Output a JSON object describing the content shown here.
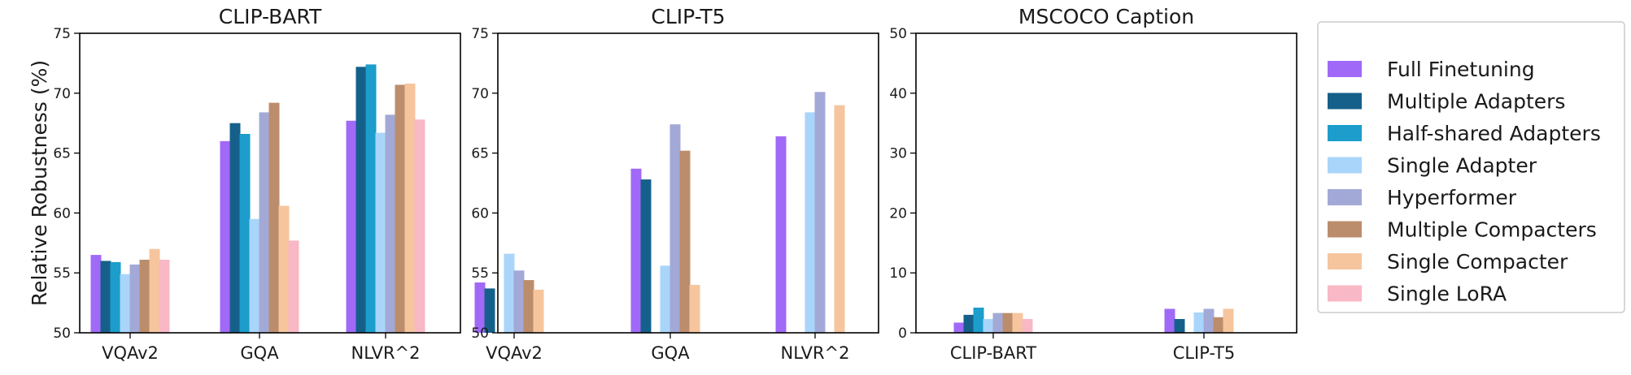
{
  "colors": {
    "Full Finetuning": "#A069F7",
    "Multiple Adapters": "#15608A",
    "Half-shared Adapters": "#1C9DCB",
    "Single Adapter": "#A9D5FA",
    "Hyperformer": "#A3A9D6",
    "Multiple Compacters": "#BC8D6C",
    "Single Compacter": "#F6C59D",
    "Single LoRA": "#F8B8C6"
  },
  "chart_data": [
    {
      "type": "bar",
      "title": "CLIP-BART",
      "ylabel": "Relative Robustness (%)",
      "ylim": [
        50,
        75
      ],
      "yticks": [
        50,
        55,
        60,
        65,
        70,
        75
      ],
      "categories": [
        "VQAv2",
        "GQA",
        "NLVR^2"
      ],
      "series": [
        {
          "name": "Full Finetuning",
          "values": [
            56.5,
            66.0,
            67.7
          ]
        },
        {
          "name": "Multiple Adapters",
          "values": [
            56.0,
            67.5,
            72.2
          ]
        },
        {
          "name": "Half-shared Adapters",
          "values": [
            55.9,
            66.6,
            72.4
          ]
        },
        {
          "name": "Single Adapter",
          "values": [
            54.9,
            59.5,
            66.7
          ]
        },
        {
          "name": "Hyperformer",
          "values": [
            55.7,
            68.4,
            68.2
          ]
        },
        {
          "name": "Multiple Compacters",
          "values": [
            56.1,
            69.2,
            70.7
          ]
        },
        {
          "name": "Single Compacter",
          "values": [
            57.0,
            60.6,
            70.8
          ]
        },
        {
          "name": "Single LoRA",
          "values": [
            56.1,
            57.7,
            67.8
          ]
        }
      ]
    },
    {
      "type": "bar",
      "title": "CLIP-T5",
      "ylabel": "",
      "ylim": [
        50,
        75
      ],
      "yticks": [
        50,
        55,
        60,
        65,
        70,
        75
      ],
      "categories": [
        "VQAv2",
        "GQA",
        "NLVR^2"
      ],
      "series": [
        {
          "name": "Full Finetuning",
          "values": [
            54.2,
            63.7,
            66.4
          ]
        },
        {
          "name": "Multiple Adapters",
          "values": [
            53.7,
            62.8,
            null
          ]
        },
        {
          "name": "Half-shared Adapters",
          "values": [
            null,
            null,
            null
          ]
        },
        {
          "name": "Single Adapter",
          "values": [
            56.6,
            55.6,
            68.4
          ]
        },
        {
          "name": "Hyperformer",
          "values": [
            55.2,
            67.4,
            70.1
          ]
        },
        {
          "name": "Multiple Compacters",
          "values": [
            54.4,
            65.2,
            null
          ]
        },
        {
          "name": "Single Compacter",
          "values": [
            53.6,
            54.0,
            69.0
          ]
        },
        {
          "name": "Single LoRA",
          "values": [
            null,
            null,
            null
          ]
        }
      ]
    },
    {
      "type": "bar",
      "title": "MSCOCO Caption",
      "ylabel": "",
      "ylim": [
        0,
        50
      ],
      "yticks": [
        0,
        10,
        20,
        30,
        40,
        50
      ],
      "categories": [
        "CLIP-BART",
        "CLIP-T5"
      ],
      "series": [
        {
          "name": "Full Finetuning",
          "values": [
            1.7,
            4.0
          ]
        },
        {
          "name": "Multiple Adapters",
          "values": [
            3.0,
            2.3
          ]
        },
        {
          "name": "Half-shared Adapters",
          "values": [
            4.2,
            null
          ]
        },
        {
          "name": "Single Adapter",
          "values": [
            2.3,
            3.4
          ]
        },
        {
          "name": "Hyperformer",
          "values": [
            3.3,
            4.0
          ]
        },
        {
          "name": "Multiple Compacters",
          "values": [
            3.3,
            2.6
          ]
        },
        {
          "name": "Single Compacter",
          "values": [
            3.3,
            4.0
          ]
        },
        {
          "name": "Single LoRA",
          "values": [
            2.3,
            null
          ]
        }
      ]
    }
  ],
  "legend": {
    "placement": "right",
    "items": [
      "Full Finetuning",
      "Multiple Adapters",
      "Half-shared Adapters",
      "Single Adapter",
      "Hyperformer",
      "Multiple Compacters",
      "Single Compacter",
      "Single LoRA"
    ]
  }
}
